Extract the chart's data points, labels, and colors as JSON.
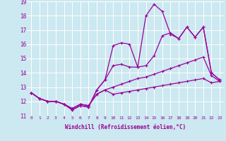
{
  "xlabel": "Windchill (Refroidissement éolien,°C)",
  "background_color": "#cce8f0",
  "line_color": "#990099",
  "xlim": [
    -0.5,
    23.5
  ],
  "ylim": [
    11,
    19
  ],
  "yticks": [
    11,
    12,
    13,
    14,
    15,
    16,
    17,
    18,
    19
  ],
  "xticks": [
    0,
    1,
    2,
    3,
    4,
    5,
    6,
    7,
    8,
    9,
    10,
    11,
    12,
    13,
    14,
    15,
    16,
    17,
    18,
    19,
    20,
    21,
    22,
    23
  ],
  "series": [
    [
      12.6,
      12.2,
      12.0,
      12.0,
      11.8,
      11.4,
      11.7,
      11.6,
      12.8,
      13.5,
      15.9,
      16.1,
      16.0,
      14.4,
      18.0,
      18.8,
      18.3,
      16.7,
      16.4,
      17.2,
      16.5,
      17.2,
      14.0,
      13.5
    ],
    [
      12.6,
      12.2,
      12.0,
      12.0,
      11.8,
      11.4,
      11.7,
      11.6,
      12.8,
      13.5,
      14.5,
      14.6,
      14.4,
      14.4,
      14.5,
      15.2,
      16.6,
      16.8,
      16.4,
      17.2,
      16.5,
      17.2,
      14.0,
      13.5
    ],
    [
      12.6,
      12.2,
      12.0,
      12.0,
      11.8,
      11.5,
      11.8,
      11.7,
      12.5,
      12.8,
      13.0,
      13.2,
      13.4,
      13.6,
      13.7,
      13.9,
      14.1,
      14.3,
      14.5,
      14.7,
      14.9,
      15.1,
      13.8,
      13.4
    ],
    [
      12.6,
      12.2,
      12.0,
      12.0,
      11.8,
      11.5,
      11.8,
      11.7,
      12.5,
      12.8,
      12.5,
      12.6,
      12.7,
      12.8,
      12.9,
      13.0,
      13.1,
      13.2,
      13.3,
      13.4,
      13.5,
      13.6,
      13.3,
      13.4
    ]
  ]
}
